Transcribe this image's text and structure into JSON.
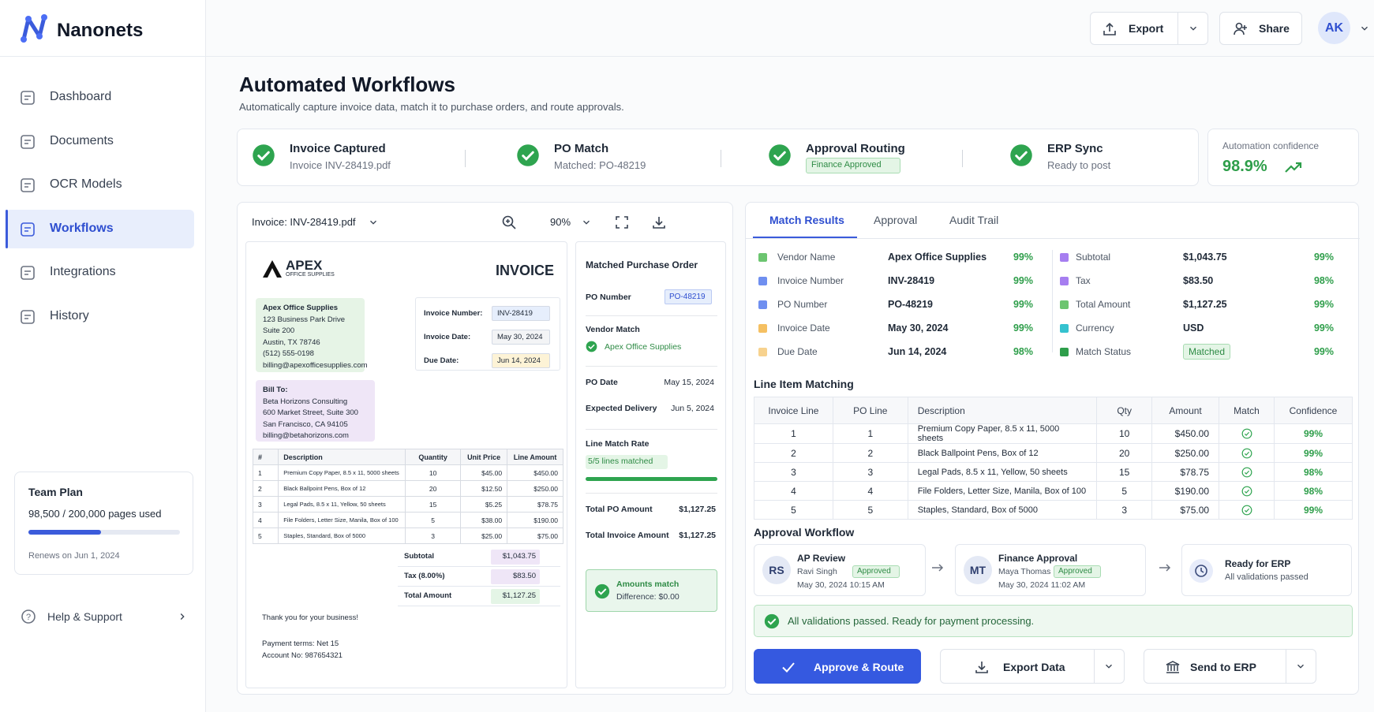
{
  "brand": "Nanonets",
  "nav": [
    "Dashboard",
    "Documents",
    "OCR Models",
    "Workflows",
    "Integrations",
    "History"
  ],
  "plan": {
    "title": "Team Plan",
    "usage": "98,500 / 200,000 pages used",
    "renews": "Renews on Jun 1, 2024"
  },
  "help": "Help & Support",
  "topbar": {
    "export": "Export",
    "share": "Share",
    "avatar": "AK"
  },
  "page": {
    "title": "Automated Workflows",
    "subtitle": "Automatically capture invoice data, match it to purchase orders, and route approvals."
  },
  "steps": [
    {
      "title": "Invoice Captured",
      "detail": "Invoice INV-28419.pdf"
    },
    {
      "title": "PO Match",
      "detail": "Matched: PO-48219"
    },
    {
      "title": "Approval Routing",
      "badge": "Finance Approved"
    },
    {
      "title": "ERP Sync",
      "detail": "Ready to post"
    }
  ],
  "confidence": {
    "label": "Automation confidence",
    "value": "98.9%"
  },
  "viewer": {
    "file": "Invoice: INV-28419.pdf",
    "zoom": "90%"
  },
  "invoice": {
    "logo": "APEX",
    "logo_sub": "OFFICE SUPPLIES",
    "heading": "INVOICE",
    "from": [
      "Apex Office Supplies",
      "123 Business Park Drive",
      "Suite 200",
      "Austin, TX 78746",
      "(512) 555-0198",
      "billing@apexofficesupplies.com"
    ],
    "bill_to": [
      "Bill To:",
      "Beta Horizons Consulting",
      "600 Market Street, Suite 300",
      "San Francisco, CA 94105",
      "billing@betahorizons.com"
    ],
    "meta": [
      [
        "Invoice Number:",
        "INV-28419"
      ],
      [
        "Invoice Date:",
        "May 30, 2024"
      ],
      [
        "Due Date:",
        "Jun 14, 2024"
      ]
    ],
    "columns": [
      "#",
      "Description",
      "Quantity",
      "Unit Price",
      "Line Amount"
    ],
    "rows": [
      [
        "1",
        "Premium Copy Paper, 8.5 x 11, 5000 sheets",
        "10",
        "$45.00",
        "$450.00"
      ],
      [
        "2",
        "Black Ballpoint Pens, Box of 12",
        "20",
        "$12.50",
        "$250.00"
      ],
      [
        "3",
        "Legal Pads, 8.5 x 11, Yellow, 50 sheets",
        "15",
        "$5.25",
        "$78.75"
      ],
      [
        "4",
        "File Folders, Letter Size, Manila, Box of 100",
        "5",
        "$38.00",
        "$190.00"
      ],
      [
        "5",
        "Staples, Standard, Box of 5000",
        "3",
        "$25.00",
        "$75.00"
      ]
    ],
    "totals": [
      [
        "Subtotal",
        "$1,043.75"
      ],
      [
        "Tax (8.00%)",
        "$83.50"
      ],
      [
        "Total Amount",
        "$1,127.25"
      ]
    ],
    "notes": [
      "Thank you for your business!",
      "Payment terms: Net 15",
      "Account No: 987654321"
    ]
  },
  "po": {
    "title": "Matched Purchase Order",
    "po_number": [
      "PO Number",
      "PO-48219"
    ],
    "vendor_match": [
      "Vendor Match",
      "Apex Office Supplies"
    ],
    "dates": [
      [
        "PO Date",
        "May 15, 2024"
      ],
      [
        "Expected Delivery",
        "Jun 5, 2024"
      ]
    ],
    "line_rate": [
      "Line Match Rate",
      "5/5 lines matched"
    ],
    "totals": [
      [
        "Total PO Amount",
        "$1,127.25"
      ],
      [
        "Total Invoice Amount",
        "$1,127.25"
      ]
    ],
    "amounts_match": [
      "Amounts match",
      "Difference: $0.00"
    ]
  },
  "tabs": [
    "Match Results",
    "Approval",
    "Audit Trail"
  ],
  "fields": [
    {
      "name": "Vendor Name",
      "value": "Apex Office Supplies",
      "confidence": "99%",
      "color": "#6cc570"
    },
    {
      "name": "Invoice Number",
      "value": "INV-28419",
      "confidence": "99%",
      "color": "#6f8ff0"
    },
    {
      "name": "PO Number",
      "value": "PO-48219",
      "confidence": "99%",
      "color": "#6f8ff0"
    },
    {
      "name": "Invoice Date",
      "value": "May 30, 2024",
      "confidence": "99%",
      "color": "#f5c062"
    },
    {
      "name": "Due Date",
      "value": "Jun 14, 2024",
      "confidence": "98%",
      "color": "#f7d28e"
    },
    {
      "name": "Subtotal",
      "value": "$1,043.75",
      "confidence": "99%",
      "color": "#a67ef0"
    },
    {
      "name": "Tax",
      "value": "$83.50",
      "confidence": "98%",
      "color": "#a67ef0"
    },
    {
      "name": "Total Amount",
      "value": "$1,127.25",
      "confidence": "99%",
      "color": "#6cc570"
    },
    {
      "name": "Currency",
      "value": "USD",
      "confidence": "99%",
      "color": "#35c2cf"
    },
    {
      "name": "Match Status",
      "value": "Matched",
      "confidence": "99%",
      "color": "#2e9e4a"
    }
  ],
  "line_items": {
    "title": "Line Item Matching",
    "columns": [
      "Invoice Line",
      "PO Line",
      "Description",
      "Qty",
      "Amount",
      "Match",
      "Confidence"
    ],
    "rows": [
      [
        "1",
        "1",
        "Premium Copy Paper, 8.5 x 11, 5000 sheets",
        "10",
        "$450.00",
        "99%"
      ],
      [
        "2",
        "2",
        "Black Ballpoint Pens, Box of 12",
        "20",
        "$250.00",
        "99%"
      ],
      [
        "3",
        "3",
        "Legal Pads, 8.5 x 11, Yellow, 50 sheets",
        "15",
        "$78.75",
        "98%"
      ],
      [
        "4",
        "4",
        "File Folders, Letter Size, Manila, Box of 100",
        "5",
        "$190.00",
        "98%"
      ],
      [
        "5",
        "5",
        "Staples, Standard, Box of 5000",
        "3",
        "$75.00",
        "99%"
      ]
    ]
  },
  "approval": {
    "title": "Approval Workflow",
    "steps": [
      {
        "initials": "RS",
        "title": "AP Review",
        "person": "Ravi Singh",
        "status": "Approved",
        "time": "May 30, 2024 10:15 AM"
      },
      {
        "initials": "MT",
        "title": "Finance Approval",
        "person": "Maya Thomas",
        "status": "Approved",
        "time": "May 30, 2024 11:02 AM"
      },
      {
        "title": "Ready for ERP",
        "detail": "All validations passed"
      }
    ]
  },
  "validation": "All validations passed. Ready for payment processing.",
  "actions": [
    "Approve & Route",
    "Export Data",
    "Send to ERP"
  ]
}
